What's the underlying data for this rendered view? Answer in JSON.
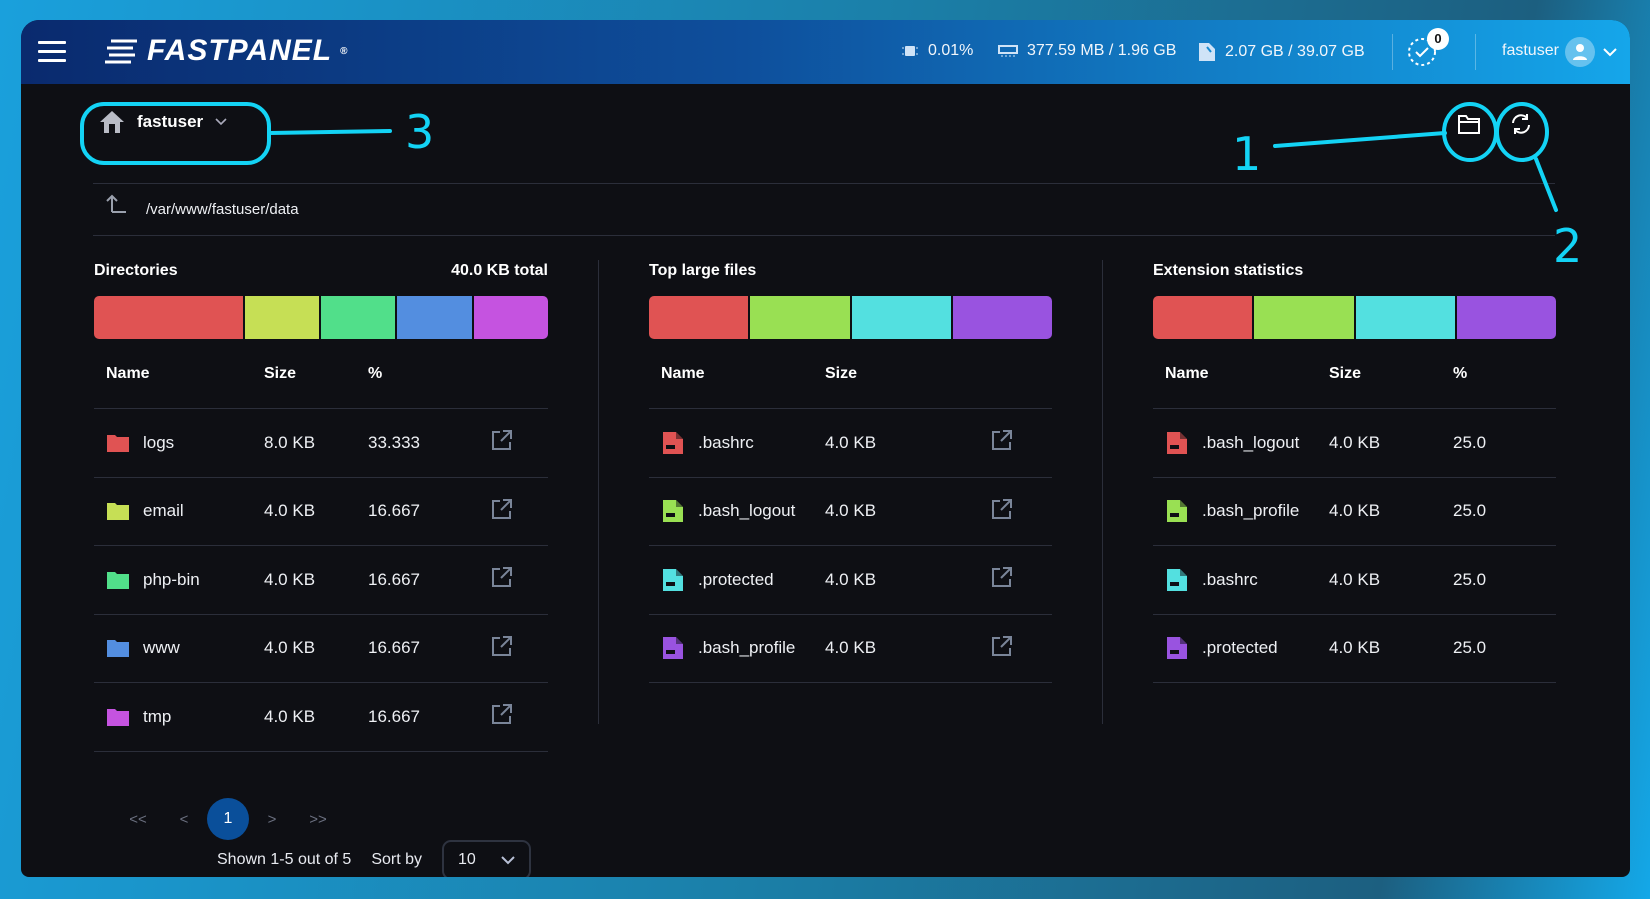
{
  "header": {
    "brand": "FASTPANEL",
    "cpu": "0.01%",
    "ram": "377.59 MB / 1.96 GB",
    "disk": "2.07 GB / 39.07 GB",
    "tasks_badge": "0",
    "username": "fastuser"
  },
  "toolbar": {
    "user_select": "fastuser",
    "path": "/var/www/fastuser/data"
  },
  "annotations": [
    "1",
    "2",
    "3"
  ],
  "directories": {
    "title": "Directories",
    "total": "40.0 KB total",
    "headers": [
      "Name",
      "Size",
      "%"
    ],
    "items": [
      {
        "name": "logs",
        "size": "8.0 KB",
        "pct": "33.333",
        "color": "#e05353"
      },
      {
        "name": "email",
        "size": "4.0 KB",
        "pct": "16.667",
        "color": "#c6df55"
      },
      {
        "name": "php-bin",
        "size": "4.0 KB",
        "pct": "16.667",
        "color": "#51df8a"
      },
      {
        "name": "www",
        "size": "4.0 KB",
        "pct": "16.667",
        "color": "#538ee0"
      },
      {
        "name": "tmp",
        "size": "4.0 KB",
        "pct": "16.667",
        "color": "#c553e0"
      }
    ]
  },
  "large_files": {
    "title": "Top large files",
    "headers": [
      "Name",
      "Size"
    ],
    "items": [
      {
        "name": ".bashrc",
        "size": "4.0 KB",
        "color": "#e05353"
      },
      {
        "name": ".bash_logout",
        "size": "4.0 KB",
        "color": "#99e053"
      },
      {
        "name": ".protected",
        "size": "4.0 KB",
        "color": "#53e0e0"
      },
      {
        "name": ".bash_profile",
        "size": "4.0 KB",
        "color": "#9953e0"
      }
    ]
  },
  "extensions": {
    "title": "Extension statistics",
    "headers": [
      "Name",
      "Size",
      "%"
    ],
    "items": [
      {
        "name": ".bash_logout",
        "size": "4.0 KB",
        "pct": "25.0",
        "color": "#e05353"
      },
      {
        "name": ".bash_profile",
        "size": "4.0 KB",
        "pct": "25.0",
        "color": "#99e053"
      },
      {
        "name": ".bashrc",
        "size": "4.0 KB",
        "pct": "25.0",
        "color": "#53e0e0"
      },
      {
        "name": ".protected",
        "size": "4.0 KB",
        "pct": "25.0",
        "color": "#9953e0"
      }
    ]
  },
  "pagination": {
    "first": "<<",
    "prev": "<",
    "current": "1",
    "next": ">",
    "last": ">>",
    "shown": "Shown 1-5 out of 5",
    "sort_label": "Sort by",
    "per_page": "10"
  }
}
